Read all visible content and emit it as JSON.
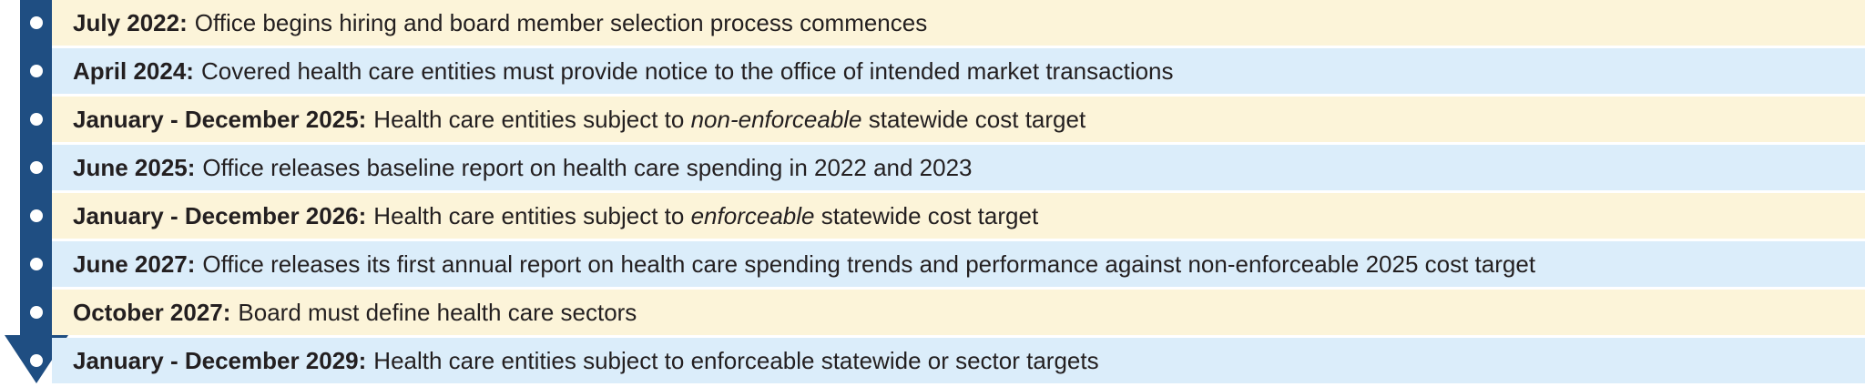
{
  "colors": {
    "arrow": "#1f4e82",
    "row_alt_1": "#fcf4d9",
    "row_alt_2": "#dbedfa"
  },
  "timeline": [
    {
      "date": "July 2022:",
      "parts": [
        {
          "text": "Office begins hiring and board member selection process commences"
        }
      ]
    },
    {
      "date": "April 2024:",
      "parts": [
        {
          "text": "Covered health care entities must provide notice to the office of intended market transactions"
        }
      ]
    },
    {
      "date": "January - December 2025:",
      "parts": [
        {
          "text": "Health care entities subject to "
        },
        {
          "text": "non-enforceable",
          "italic": true
        },
        {
          "text": " statewide cost target"
        }
      ]
    },
    {
      "date": "June 2025:",
      "parts": [
        {
          "text": "Office releases baseline report on health care spending in 2022 and 2023"
        }
      ]
    },
    {
      "date": "January - December 2026:",
      "parts": [
        {
          "text": "Health care entities subject to "
        },
        {
          "text": "enforceable",
          "italic": true
        },
        {
          "text": " statewide cost target"
        }
      ]
    },
    {
      "date": "June 2027:",
      "parts": [
        {
          "text": "Office releases its first annual report on health care spending trends and performance against non-enforceable 2025 cost target"
        }
      ]
    },
    {
      "date": "October 2027:",
      "parts": [
        {
          "text": "Board must define health care sectors"
        }
      ]
    },
    {
      "date": "January - December 2029:",
      "parts": [
        {
          "text": "Health care entities subject to enforceable statewide or sector targets"
        }
      ]
    }
  ]
}
